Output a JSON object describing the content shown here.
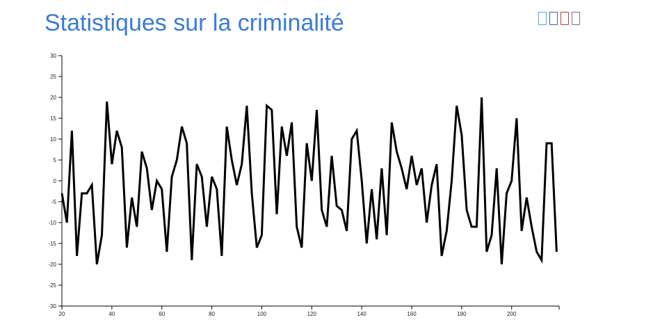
{
  "title": "Statistiques sur la criminalité",
  "toolbar": {
    "icons": [
      {
        "name": "toolbar-icon-1",
        "color": "#4aa8d8"
      },
      {
        "name": "toolbar-icon-2",
        "color": "#4a5f8a"
      },
      {
        "name": "toolbar-icon-3",
        "color": "#c0392b"
      },
      {
        "name": "toolbar-icon-4",
        "color": "#6a7a8c"
      }
    ]
  },
  "chart_data": {
    "type": "line",
    "xlim": [
      20,
      219
    ],
    "ylim": [
      -30,
      30
    ],
    "xticks": [
      20,
      40,
      60,
      80,
      100,
      120,
      140,
      160,
      180,
      200
    ],
    "yticks": [
      -30,
      -25,
      -20,
      -15,
      -10,
      -5,
      0,
      5,
      10,
      15,
      20,
      25,
      30
    ],
    "line_color": "#000000",
    "x": [
      20,
      22,
      24,
      26,
      28,
      30,
      32,
      34,
      36,
      38,
      40,
      42,
      44,
      46,
      48,
      50,
      52,
      54,
      56,
      58,
      60,
      62,
      64,
      66,
      68,
      70,
      72,
      74,
      76,
      78,
      80,
      82,
      84,
      86,
      88,
      90,
      92,
      94,
      96,
      98,
      100,
      102,
      104,
      106,
      108,
      110,
      112,
      114,
      116,
      118,
      120,
      122,
      124,
      126,
      128,
      130,
      132,
      134,
      136,
      138,
      140,
      142,
      144,
      146,
      148,
      150,
      152,
      154,
      156,
      158,
      160,
      162,
      164,
      166,
      168,
      170,
      172,
      174,
      176,
      178,
      180,
      182,
      184,
      186,
      188,
      190,
      192,
      194,
      196,
      198,
      200,
      202,
      204,
      206,
      208,
      210,
      212,
      214,
      216,
      218
    ],
    "values": [
      -3,
      -10,
      12,
      -18,
      -3,
      -3,
      -1,
      -20,
      -13,
      19,
      4,
      12,
      8,
      -16,
      -4,
      -11,
      7,
      3,
      -7,
      0,
      -2,
      -17,
      1,
      5,
      13,
      9,
      -19,
      4,
      1,
      -11,
      1,
      -2,
      -18,
      13,
      5,
      -1,
      4,
      18,
      -3,
      -16,
      -13,
      18,
      17,
      -8,
      13,
      6,
      14,
      -11,
      -16,
      9,
      0,
      17,
      -7,
      -11,
      6,
      -6,
      -7,
      -12,
      10,
      12,
      0,
      -15,
      -2,
      -14,
      3,
      -13,
      14,
      7,
      3,
      -2,
      6,
      -1,
      3,
      -10,
      -1,
      4,
      -18,
      -12,
      0,
      18,
      11,
      -7,
      -11,
      -11,
      20,
      -17,
      -13,
      3,
      -20,
      -3,
      0,
      15,
      -12,
      -4,
      -11,
      -17,
      -19,
      9,
      9,
      -17
    ]
  }
}
